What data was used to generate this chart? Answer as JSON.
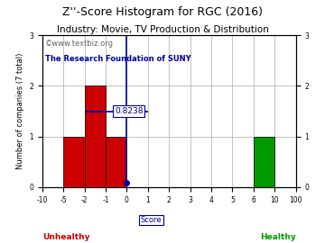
{
  "title": "Z''-Score Histogram for RGC (2016)",
  "subtitle": "Industry: Movie, TV Production & Distribution",
  "watermark1": "©www.textbiz.org",
  "watermark2": "The Research Foundation of SUNY",
  "xlabel": "Score",
  "ylabel": "Number of companies (7 total)",
  "bins_labels": [
    "-10",
    "-5",
    "-2",
    "-1",
    "0",
    "1",
    "2",
    "3",
    "4",
    "5",
    "6",
    "10",
    "100"
  ],
  "counts": [
    0,
    1,
    2,
    1,
    0,
    0,
    0,
    0,
    0,
    0,
    1,
    0
  ],
  "bar_colors": [
    "#cc0000",
    "#cc0000",
    "#cc0000",
    "#cc0000",
    "#cc0000",
    "#cc0000",
    "#cc0000",
    "#cc0000",
    "#cc0000",
    "#cc0000",
    "#009900",
    "#cc0000"
  ],
  "ylim": [
    0,
    3
  ],
  "yticks": [
    0,
    1,
    2,
    3
  ],
  "score_value": "0.8238",
  "score_bin_index": 4,
  "marker_color": "#000099",
  "unhealthy_label": "Unhealthy",
  "healthy_label": "Healthy",
  "unhealthy_color": "#cc0000",
  "healthy_color": "#009900",
  "score_label_color": "#000099",
  "grid_color": "#aaaaaa",
  "background_color": "#ffffff",
  "title_fontsize": 9,
  "subtitle_fontsize": 7.5,
  "watermark_fontsize": 6.0,
  "axis_fontsize": 6.0,
  "tick_fontsize": 5.5
}
